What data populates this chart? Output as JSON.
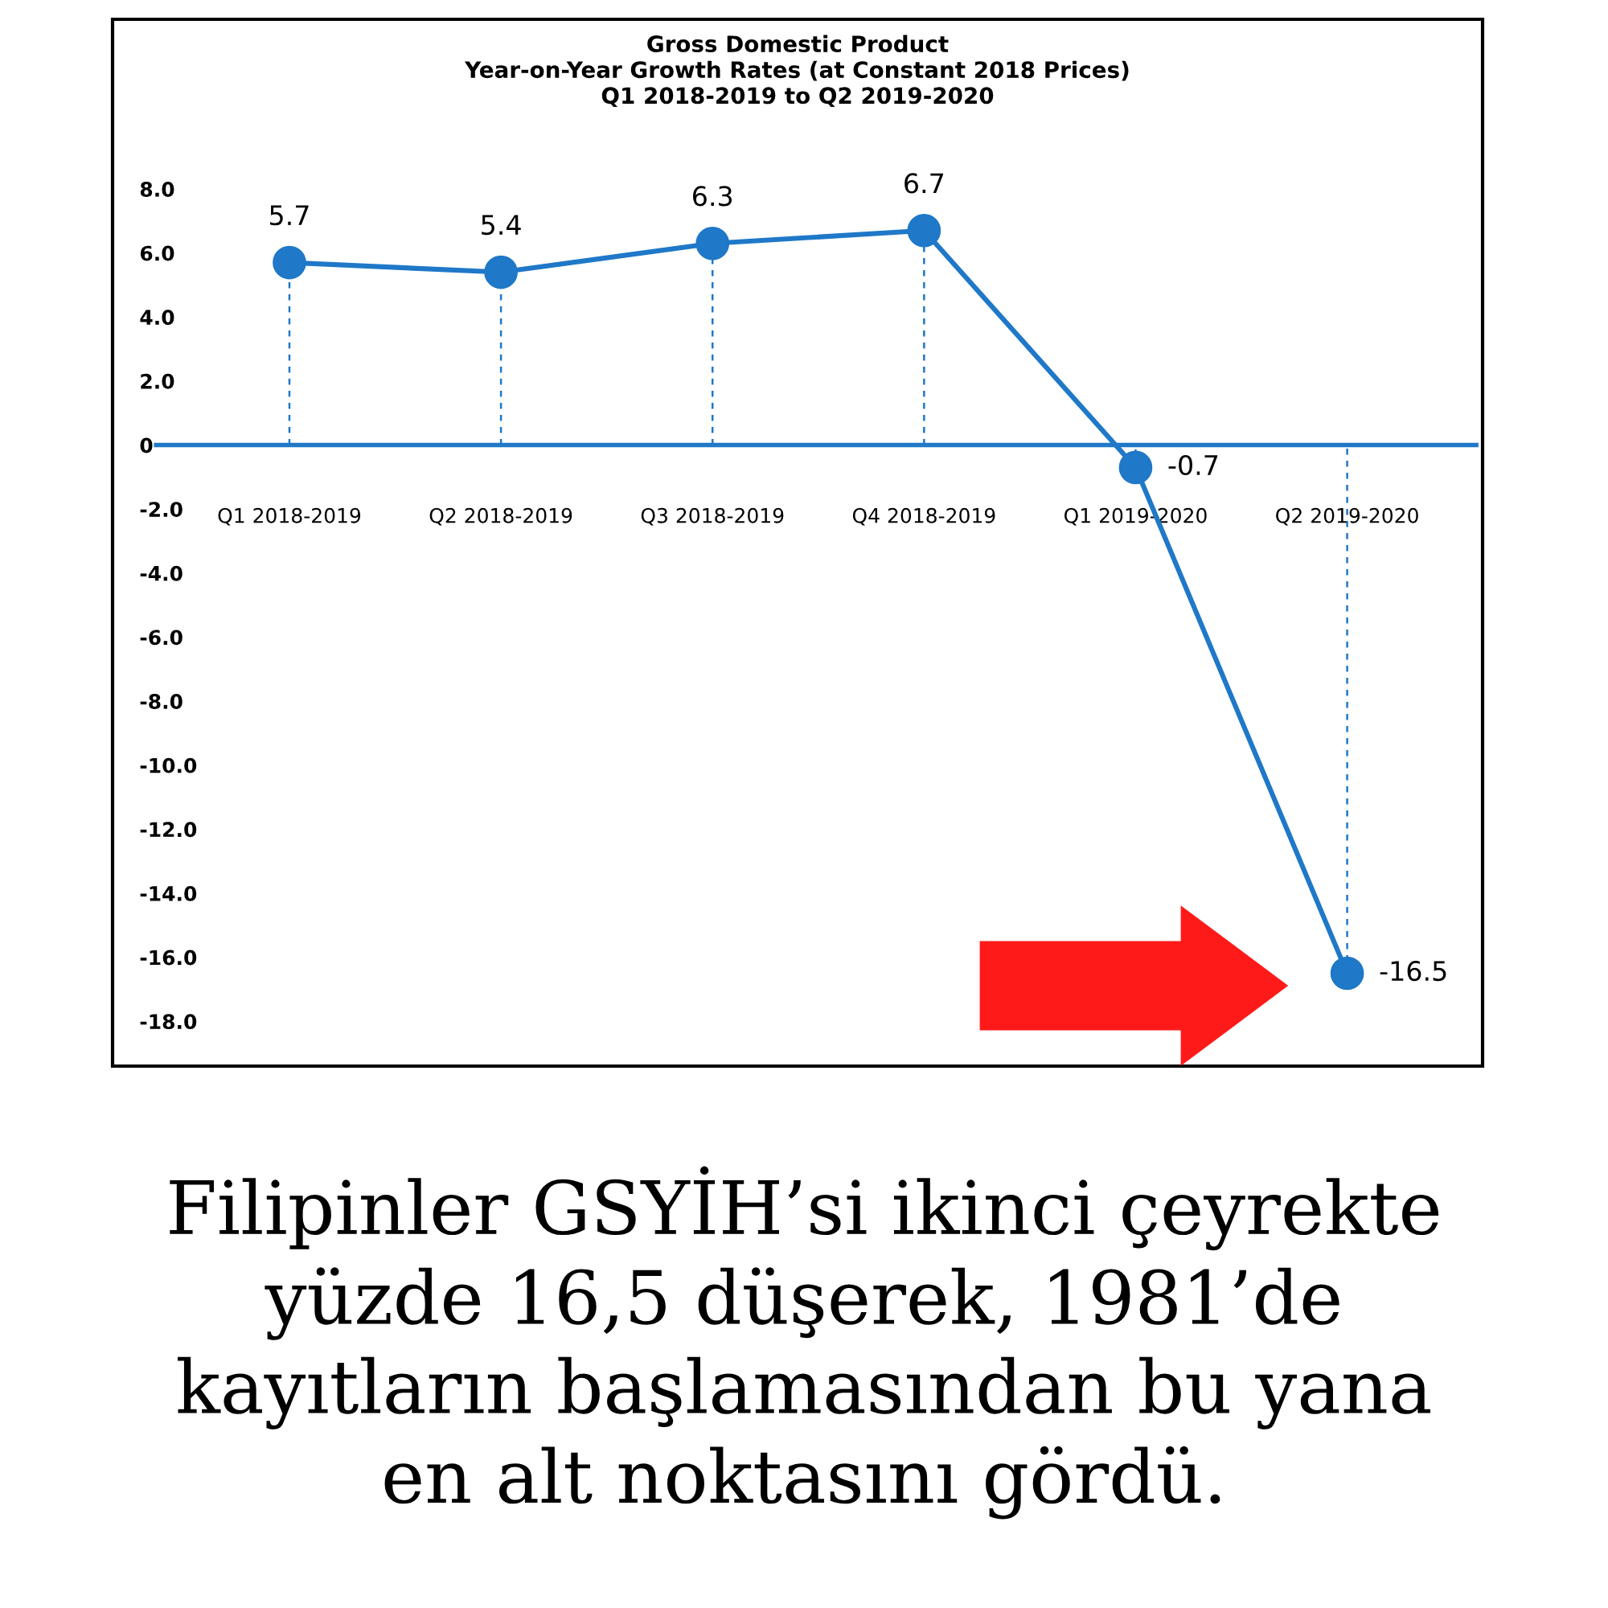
{
  "chart_data": {
    "type": "line",
    "title": "Gross Domestic Product\nYear-on-Year Growth Rates (at Constant 2018 Prices)\nQ1 2018-2019 to Q2 2019-2020",
    "categories": [
      "Q1 2018-2019",
      "Q2 2018-2019",
      "Q3 2018-2019",
      "Q4 2018-2019",
      "Q1 2019-2020",
      "Q2 2019-2020"
    ],
    "series": [
      {
        "color": "#1f78c8",
        "values": [
          5.7,
          5.4,
          6.3,
          6.7,
          -0.7,
          -16.5
        ],
        "errors": [
          [
            0,
            5.7
          ],
          [
            0,
            5.4
          ],
          [
            0,
            6.3
          ],
          [
            0,
            6.7
          ],
          [
            -0.7,
            0
          ],
          [
            -16.5,
            0
          ]
        ]
      }
    ],
    "data_labels": true,
    "marker": "circle",
    "line_style": "solid",
    "grid": false,
    "ref_lines": [
      {
        "axis": "y",
        "value": 0,
        "color": "#1f78c8"
      }
    ],
    "ylim": [
      -19.4,
      13.3
    ],
    "yticks": [
      {
        "value": 8,
        "label": "8.0"
      },
      {
        "value": 6,
        "label": "6.0"
      },
      {
        "value": 4,
        "label": "4.0"
      },
      {
        "value": 2,
        "label": "2.0"
      },
      0,
      {
        "value": -2,
        "label": "-2.0"
      },
      {
        "value": -4,
        "label": "-4.0"
      },
      {
        "value": -6,
        "label": "-6.0"
      },
      {
        "value": -8,
        "label": "-8.0"
      },
      {
        "value": -10,
        "label": "-10.0"
      },
      {
        "value": -12,
        "label": "-12.0"
      },
      {
        "value": -14,
        "label": "-14.0"
      },
      {
        "value": -16,
        "label": "-16.0"
      },
      {
        "value": -18,
        "label": "-18.0"
      }
    ],
    "annotations": [
      "Filipinler GSYİH’si ikinci çeyrekte\nyüzde 16,5 düşerek, 1981’de\nkayıtların başlamasından bu yana\nen alt noktasını gördü."
    ]
  }
}
